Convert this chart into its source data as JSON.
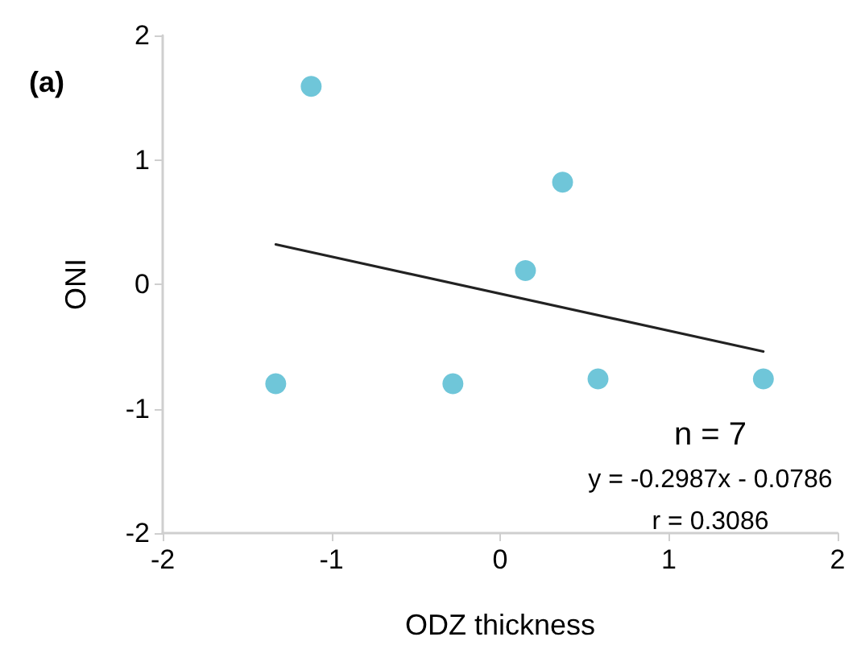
{
  "chart_data": {
    "type": "scatter",
    "xlabel": "ODZ thickness",
    "ylabel": "ONI",
    "x": [
      -1.12,
      0.37,
      0.15,
      -1.33,
      -0.28,
      0.58,
      1.56
    ],
    "series": [
      {
        "color": "#4bb8cf",
        "values": [
          1.59,
          0.82,
          0.11,
          -0.8,
          -0.8,
          -0.76,
          -0.76
        ]
      },
      {
        "type": "line",
        "color": "#222222",
        "x": [
          -1.33,
          1.56
        ],
        "values": [
          0.32,
          -0.54
        ],
        "marker": "none"
      }
    ],
    "xlim": [
      -2,
      2
    ],
    "xticks": [
      -2,
      -1,
      0,
      1,
      2
    ],
    "ylim": [
      -2,
      2
    ],
    "yticks": [
      -2,
      -1,
      0,
      1,
      2
    ],
    "grid": false,
    "marker": "circle",
    "annotations": [
      "(a)",
      "n = 7",
      "y = -0.2987x - 0.0786",
      "r = 0.3086"
    ]
  }
}
